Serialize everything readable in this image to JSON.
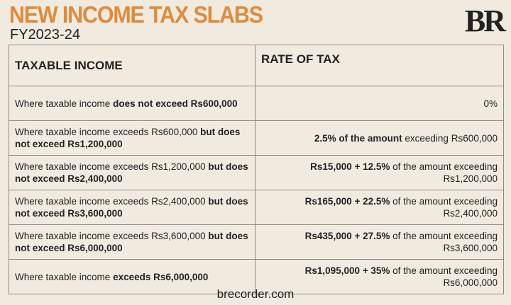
{
  "header": {
    "title": "NEW INCOME TAX SLABS",
    "subtitle": "FY2023-24",
    "logo": "BR",
    "accent_color": "#e08a3c"
  },
  "table": {
    "columns": [
      "TAXABLE INCOME",
      "RATE OF TAX"
    ],
    "rows": [
      {
        "income": [
          {
            "t": "Where taxable income ",
            "b": false
          },
          {
            "t": "does not exceed Rs600,000",
            "b": true
          }
        ],
        "rate": [
          {
            "t": "0%",
            "b": false
          }
        ]
      },
      {
        "income": [
          {
            "t": "Where taxable income exceeds Rs600,000 ",
            "b": false
          },
          {
            "t": "but does not exceed Rs1,200,000",
            "b": true
          }
        ],
        "rate": [
          {
            "t": "2.5% of the amount",
            "b": true
          },
          {
            "t": " exceeding Rs600,000",
            "b": false
          }
        ]
      },
      {
        "income": [
          {
            "t": "Where taxable income exceeds Rs1,200,000 ",
            "b": false
          },
          {
            "t": "but does not exceed Rs2,400,000",
            "b": true
          }
        ],
        "rate": [
          {
            "t": "Rs15,000 + 12.5%",
            "b": true
          },
          {
            "t": " of the amount exceeding Rs1,200,000",
            "b": false
          }
        ]
      },
      {
        "income": [
          {
            "t": "Where taxable income exceeds Rs2,400,000 ",
            "b": false
          },
          {
            "t": "but does not exceed Rs3,600,000",
            "b": true
          }
        ],
        "rate": [
          {
            "t": "Rs165,000 + 22.5%",
            "b": true
          },
          {
            "t": " of the amount exceeding Rs2,400,000",
            "b": false
          }
        ]
      },
      {
        "income": [
          {
            "t": "Where taxable income exceeds Rs3,600,000 ",
            "b": false
          },
          {
            "t": "but does not exceed Rs6,000,000",
            "b": true
          }
        ],
        "rate": [
          {
            "t": "Rs435,000 + 27.5%",
            "b": true
          },
          {
            "t": " of the amount exceeding Rs3,600,000",
            "b": false
          }
        ]
      },
      {
        "income": [
          {
            "t": "Where taxable income ",
            "b": false
          },
          {
            "t": "exceeds Rs6,000,000",
            "b": true
          }
        ],
        "rate": [
          {
            "t": "Rs1,095,000 + 35%",
            "b": true
          },
          {
            "t": " of the amount exceeding Rs6,000,000",
            "b": false
          }
        ]
      }
    ]
  },
  "footer": {
    "source": "brecorder.com"
  }
}
